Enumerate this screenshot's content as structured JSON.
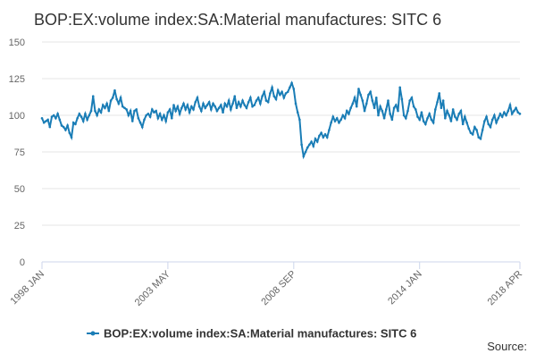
{
  "chart_data": {
    "type": "line",
    "title": "BOP:EX:volume index:SA:Material manufactures: SITC 6",
    "source_label": "Source:",
    "categories": [
      "1998 JAN",
      null,
      null,
      null,
      null,
      null,
      null,
      null,
      null,
      null,
      null,
      null,
      null,
      null,
      null,
      null,
      null,
      null,
      null,
      null,
      null,
      null,
      null,
      null,
      null,
      null,
      null,
      null,
      null,
      null,
      null,
      null,
      null,
      null,
      null,
      null,
      null,
      null,
      null,
      null,
      null,
      null,
      null,
      null,
      null,
      null,
      null,
      null,
      null,
      null,
      null,
      null,
      null,
      null,
      null,
      null,
      null,
      null,
      null,
      null,
      null,
      null,
      null,
      null,
      "2003 MAY",
      null,
      null,
      null,
      null,
      null,
      null,
      null,
      null,
      null,
      null,
      null,
      null,
      null,
      null,
      null,
      null,
      null,
      null,
      null,
      null,
      null,
      null,
      null,
      null,
      null,
      null,
      null,
      null,
      null,
      null,
      null,
      null,
      null,
      null,
      null,
      null,
      null,
      null,
      null,
      null,
      null,
      null,
      null,
      null,
      null,
      null,
      null,
      null,
      null,
      null,
      null,
      null,
      null,
      null,
      null,
      null,
      null,
      null,
      null,
      null,
      null,
      null,
      null,
      "2008 SEP",
      null,
      null,
      null,
      null,
      null,
      null,
      null,
      null,
      null,
      null,
      null,
      null,
      null,
      null,
      null,
      null,
      null,
      null,
      null,
      null,
      null,
      null,
      null,
      null,
      null,
      null,
      null,
      null,
      null,
      null,
      null,
      null,
      null,
      null,
      null,
      null,
      null,
      null,
      null,
      null,
      null,
      null,
      null,
      null,
      null,
      null,
      null,
      null,
      null,
      null,
      null,
      null,
      null,
      null,
      null,
      null,
      null,
      null,
      null,
      null,
      null,
      null,
      null,
      "2014 JAN",
      null,
      null,
      null,
      null,
      null,
      null,
      null,
      null,
      null,
      null,
      null,
      null,
      null,
      null,
      null,
      null,
      null,
      null,
      null,
      null,
      null,
      null,
      null,
      null,
      null,
      null,
      null,
      null,
      null,
      null,
      null,
      null,
      null,
      null,
      null,
      null,
      null,
      null,
      null,
      null,
      null,
      null,
      null,
      null,
      null,
      null,
      null,
      null,
      null,
      null,
      "2018 APR"
    ],
    "series": [
      {
        "name": "BOP:EX:volume index:SA:Material manufactures: SITC 6",
        "color": "#1a7db6",
        "values": [
          98,
          95,
          96,
          97,
          92,
          99,
          100,
          98,
          101,
          97,
          93,
          92,
          90,
          93,
          88,
          85,
          95,
          94,
          98,
          101,
          99,
          96,
          101,
          97,
          100,
          103,
          113,
          103,
          100,
          104,
          102,
          107,
          105,
          108,
          103,
          110,
          112,
          117,
          111,
          108,
          112,
          106,
          105,
          104,
          100,
          103,
          96,
          103,
          104,
          98,
          95,
          92,
          97,
          100,
          101,
          99,
          104,
          102,
          103,
          98,
          101,
          97,
          100,
          96,
          102,
          104,
          98,
          107,
          103,
          106,
          101,
          105,
          108,
          104,
          107,
          102,
          106,
          104,
          109,
          112,
          106,
          103,
          108,
          105,
          107,
          109,
          104,
          108,
          106,
          103,
          105,
          107,
          102,
          108,
          106,
          110,
          104,
          108,
          113,
          105,
          109,
          106,
          110,
          107,
          105,
          109,
          112,
          106,
          107,
          110,
          112,
          108,
          113,
          116,
          110,
          109,
          115,
          119,
          113,
          111,
          117,
          114,
          116,
          112,
          115,
          116,
          119,
          122,
          118,
          108,
          102,
          97,
          80,
          72,
          75,
          78,
          80,
          82,
          79,
          84,
          82,
          86,
          88,
          85,
          87,
          85,
          90,
          95,
          99,
          96,
          98,
          95,
          97,
          100,
          98,
          103,
          101,
          105,
          108,
          112,
          106,
          118,
          114,
          110,
          103,
          108,
          114,
          116,
          110,
          105,
          112,
          100,
          106,
          103,
          98,
          104,
          110,
          101,
          97,
          105,
          107,
          103,
          119,
          111,
          100,
          98,
          103,
          110,
          112,
          106,
          104,
          99,
          97,
          102,
          96,
          94,
          98,
          101,
          97,
          95,
          104,
          109,
          115,
          105,
          110,
          98,
          103,
          100,
          96,
          104,
          99,
          97,
          101,
          103,
          94,
          99,
          95,
          91,
          88,
          87,
          92,
          90,
          85,
          84,
          90,
          96,
          99,
          94,
          92,
          97,
          100,
          95,
          98,
          101,
          99,
          102,
          100,
          103,
          107,
          101,
          103,
          105,
          102,
          101
        ]
      }
    ],
    "ylim": [
      0,
      150
    ],
    "yticks": [
      0,
      25,
      50,
      75,
      100,
      125,
      150
    ],
    "grid": true
  }
}
